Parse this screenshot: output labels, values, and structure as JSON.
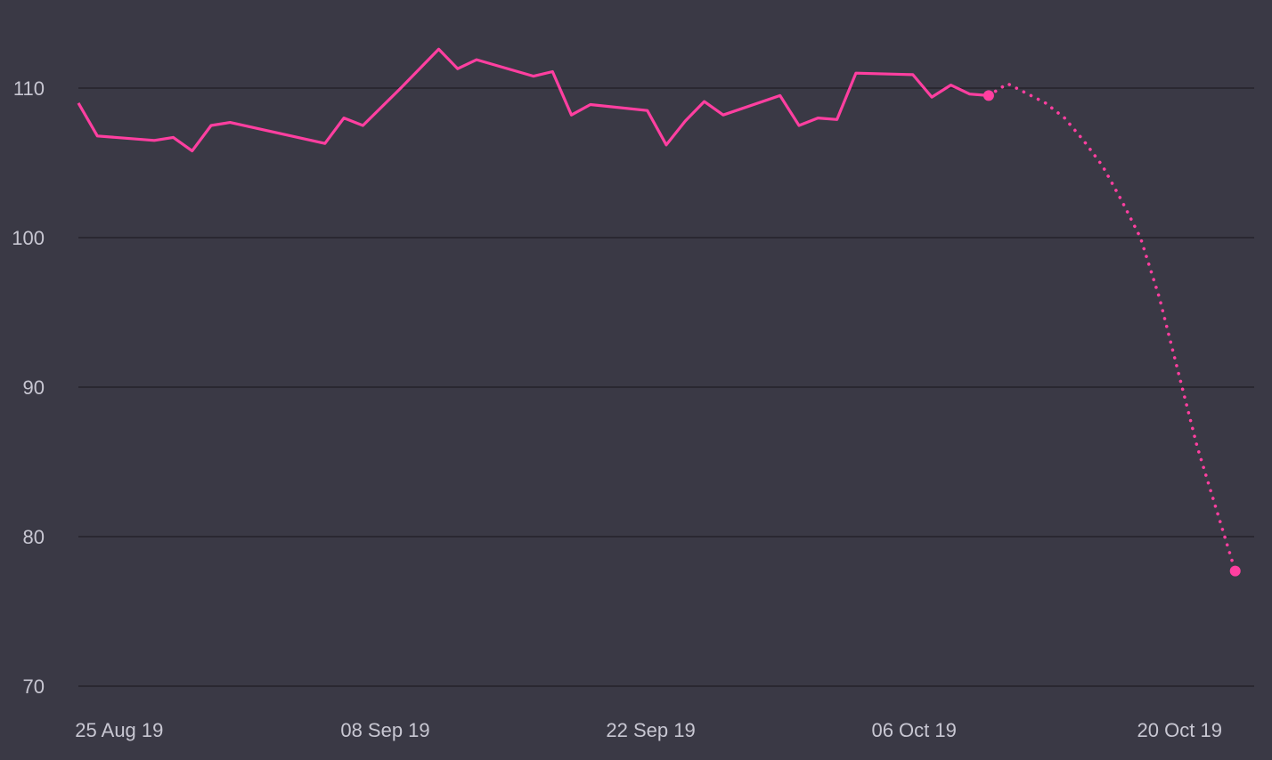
{
  "chart_data": {
    "type": "line",
    "title": "",
    "xlabel": "",
    "ylabel": "",
    "ylim": [
      70,
      115
    ],
    "xlim": [
      "2019-08-24",
      "2019-10-25"
    ],
    "yticks": [
      70,
      80,
      90,
      100,
      110
    ],
    "ytick_labels": [
      "70",
      "80",
      "90",
      "100",
      "110"
    ],
    "xticks": [
      "2019-08-25",
      "2019-09-08",
      "2019-09-22",
      "2019-10-06",
      "2019-10-20"
    ],
    "xtick_labels": [
      "25 Aug 19",
      "08 Sep 19",
      "22 Sep 19",
      "06 Oct 19",
      "20 Oct 19"
    ],
    "grid": "horizontal",
    "colors": {
      "background": "#3a3945",
      "line": "#ff3fa0",
      "grid": "#24232b",
      "text": "#c8c7d2"
    },
    "series": [
      {
        "style": "solid",
        "x": [
          "2019-08-24",
          "2019-08-25",
          "2019-08-28",
          "2019-08-29",
          "2019-08-30",
          "2019-08-31",
          "2019-09-01",
          "2019-09-06",
          "2019-09-07",
          "2019-09-08",
          "2019-09-10",
          "2019-09-12",
          "2019-09-13",
          "2019-09-14",
          "2019-09-17",
          "2019-09-18",
          "2019-09-19",
          "2019-09-20",
          "2019-09-23",
          "2019-09-24",
          "2019-09-25",
          "2019-09-26",
          "2019-09-27",
          "2019-09-30",
          "2019-10-01",
          "2019-10-02",
          "2019-10-03",
          "2019-10-04",
          "2019-10-07",
          "2019-10-08",
          "2019-10-09",
          "2019-10-10",
          "2019-10-11"
        ],
        "y": [
          109.0,
          106.8,
          106.5,
          106.7,
          105.8,
          107.5,
          107.7,
          106.3,
          108.0,
          107.5,
          110.0,
          112.6,
          111.3,
          111.9,
          110.8,
          111.1,
          108.2,
          108.9,
          108.5,
          106.2,
          107.8,
          109.1,
          108.2,
          109.5,
          107.5,
          108.0,
          107.9,
          111.0,
          110.9,
          109.4,
          110.2,
          109.6,
          109.5
        ]
      },
      {
        "style": "dotted",
        "x": [
          "2019-10-11",
          "2019-10-12",
          "2019-10-14",
          "2019-10-15",
          "2019-10-16",
          "2019-10-17",
          "2019-10-18",
          "2019-10-19",
          "2019-10-20",
          "2019-10-21",
          "2019-10-22",
          "2019-10-24"
        ],
        "y": [
          109.5,
          110.3,
          109.0,
          108.0,
          106.5,
          104.8,
          102.5,
          100.0,
          96.0,
          91.0,
          86.0,
          77.7
        ]
      }
    ],
    "markers": [
      {
        "x": "2019-10-11",
        "y": 109.5
      },
      {
        "x": "2019-10-24",
        "y": 77.7
      }
    ]
  }
}
